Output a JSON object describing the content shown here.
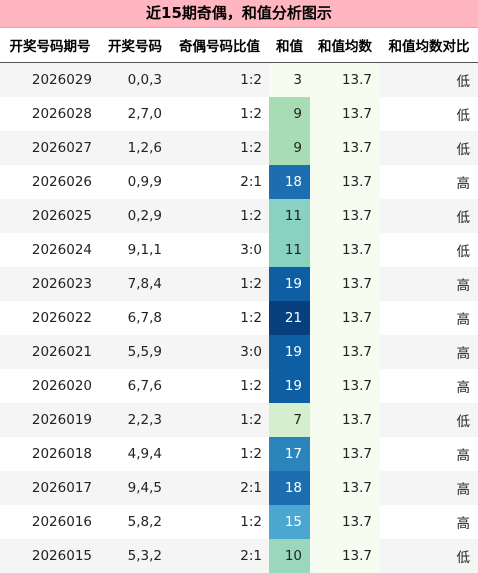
{
  "title": "近15期奇偶，和值分析图示",
  "columns": [
    "开奖号码期号",
    "开奖号码",
    "奇偶号码比值",
    "和值",
    "和值均数",
    "和值均数对比"
  ],
  "rows": [
    {
      "period": "2026029",
      "numbers": "0,0,3",
      "ratio": "1:2",
      "sum": "3",
      "avg": "13.7",
      "compare": "低",
      "sum_bg": "#f7fcf0",
      "sum_fg": "#222222"
    },
    {
      "period": "2026028",
      "numbers": "2,7,0",
      "ratio": "1:2",
      "sum": "9",
      "avg": "13.7",
      "compare": "低",
      "sum_bg": "#a8dcb5",
      "sum_fg": "#222222"
    },
    {
      "period": "2026027",
      "numbers": "1,2,6",
      "ratio": "1:2",
      "sum": "9",
      "avg": "13.7",
      "compare": "低",
      "sum_bg": "#a8dcb5",
      "sum_fg": "#222222"
    },
    {
      "period": "2026026",
      "numbers": "0,9,9",
      "ratio": "2:1",
      "sum": "18",
      "avg": "13.7",
      "compare": "高",
      "sum_bg": "#1d6eb1",
      "sum_fg": "#ffffff"
    },
    {
      "period": "2026025",
      "numbers": "0,2,9",
      "ratio": "1:2",
      "sum": "11",
      "avg": "13.7",
      "compare": "低",
      "sum_bg": "#89d1c0",
      "sum_fg": "#222222"
    },
    {
      "period": "2026024",
      "numbers": "9,1,1",
      "ratio": "3:0",
      "sum": "11",
      "avg": "13.7",
      "compare": "低",
      "sum_bg": "#89d1c0",
      "sum_fg": "#222222"
    },
    {
      "period": "2026023",
      "numbers": "7,8,4",
      "ratio": "1:2",
      "sum": "19",
      "avg": "13.7",
      "compare": "高",
      "sum_bg": "#0e5ea3",
      "sum_fg": "#ffffff"
    },
    {
      "period": "2026022",
      "numbers": "6,7,8",
      "ratio": "1:2",
      "sum": "21",
      "avg": "13.7",
      "compare": "高",
      "sum_bg": "#08407f",
      "sum_fg": "#ffffff"
    },
    {
      "period": "2026021",
      "numbers": "5,5,9",
      "ratio": "3:0",
      "sum": "19",
      "avg": "13.7",
      "compare": "高",
      "sum_bg": "#0e5ea3",
      "sum_fg": "#ffffff"
    },
    {
      "period": "2026020",
      "numbers": "6,7,6",
      "ratio": "1:2",
      "sum": "19",
      "avg": "13.7",
      "compare": "高",
      "sum_bg": "#0e5ea3",
      "sum_fg": "#ffffff"
    },
    {
      "period": "2026019",
      "numbers": "2,2,3",
      "ratio": "1:2",
      "sum": "7",
      "avg": "13.7",
      "compare": "低",
      "sum_bg": "#d5efce",
      "sum_fg": "#222222"
    },
    {
      "period": "2026018",
      "numbers": "4,9,4",
      "ratio": "1:2",
      "sum": "17",
      "avg": "13.7",
      "compare": "高",
      "sum_bg": "#2c84bd",
      "sum_fg": "#ffffff"
    },
    {
      "period": "2026017",
      "numbers": "9,4,5",
      "ratio": "2:1",
      "sum": "18",
      "avg": "13.7",
      "compare": "高",
      "sum_bg": "#1d6eb1",
      "sum_fg": "#ffffff"
    },
    {
      "period": "2026016",
      "numbers": "5,8,2",
      "ratio": "1:2",
      "sum": "15",
      "avg": "13.7",
      "compare": "高",
      "sum_bg": "#4aa7cf",
      "sum_fg": "#ffffff"
    },
    {
      "period": "2026015",
      "numbers": "5,3,2",
      "ratio": "2:1",
      "sum": "10",
      "avg": "13.7",
      "compare": "低",
      "sum_bg": "#9ad7bc",
      "sum_fg": "#222222"
    }
  ],
  "colors": {
    "title_bg": "#ffb6c1",
    "avg_bg_light": "#f7fcf0",
    "row_alt": "#f5f5f5"
  }
}
